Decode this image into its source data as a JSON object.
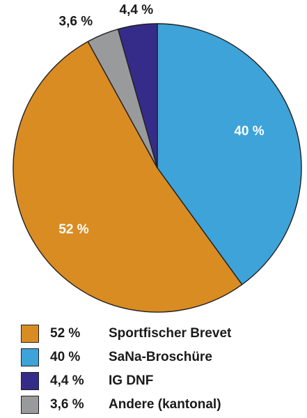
{
  "chart_data": {
    "type": "pie",
    "title": "",
    "start_angle_deg": 0,
    "direction": "clockwise",
    "slices": [
      {
        "name": "SaNa-Broschüre",
        "value": 40,
        "value_label": "40 %",
        "color": "#3da3d8",
        "label_color": "#ffffff",
        "label_position": "inside"
      },
      {
        "name": "Sportfischer Brevet",
        "value": 52,
        "value_label": "52 %",
        "color": "#d98c22",
        "label_color": "#ffffff",
        "label_position": "inside"
      },
      {
        "name": "Andere (kantonal)",
        "value": 3.6,
        "value_label": "3,6 %",
        "color": "#999a9c",
        "label_color": "#1a1a1a",
        "label_position": "outside"
      },
      {
        "name": "IG DNF",
        "value": 4.4,
        "value_label": "4,4 %",
        "color": "#352c8a",
        "label_color": "#1a1a1a",
        "label_position": "outside"
      }
    ]
  },
  "legend": {
    "items": [
      {
        "value": "52 %",
        "name": "Sportfischer Brevet",
        "color": "#d98c22"
      },
      {
        "value": "40 %",
        "name": "SaNa-Broschüre",
        "color": "#3da3d8"
      },
      {
        "value": "4,4 %",
        "name": "IG DNF",
        "color": "#352c8a"
      },
      {
        "value": "3,6 %",
        "name": "Andere (kantonal)",
        "color": "#999a9c"
      }
    ]
  }
}
